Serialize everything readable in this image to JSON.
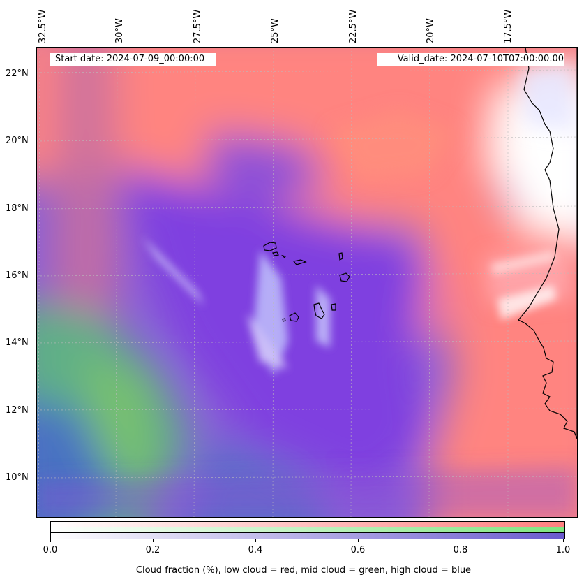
{
  "map": {
    "start_date": "Start date: 2024-07-09_00:00:00",
    "valid_date": "Valid_date: 2024-07-10T07:00:00.00",
    "lon_labels": [
      "32.5°W",
      "30°W",
      "27.5°W",
      "25°W",
      "22.5°W",
      "20°W",
      "17.5°W"
    ],
    "lat_labels": [
      "22°N",
      "20°N",
      "18°N",
      "16°N",
      "14°N",
      "12°N",
      "10°N"
    ],
    "extent": {
      "lon_min": -32.5,
      "lon_max": -15.5,
      "lat_min": 8.8,
      "lat_max": 22.7
    },
    "colors": {
      "low_cloud": "#ff7f7f",
      "mid_cloud": "#7fdf7f",
      "high_cloud": "#6a5acd",
      "land": "#ffffff",
      "coastline": "#000000"
    }
  },
  "colorbar": {
    "ticks": [
      "0.0",
      "0.2",
      "0.4",
      "0.6",
      "0.8",
      "1.0"
    ],
    "label": "Cloud fraction (%), low cloud = red, mid cloud = green, high cloud = blue"
  }
}
